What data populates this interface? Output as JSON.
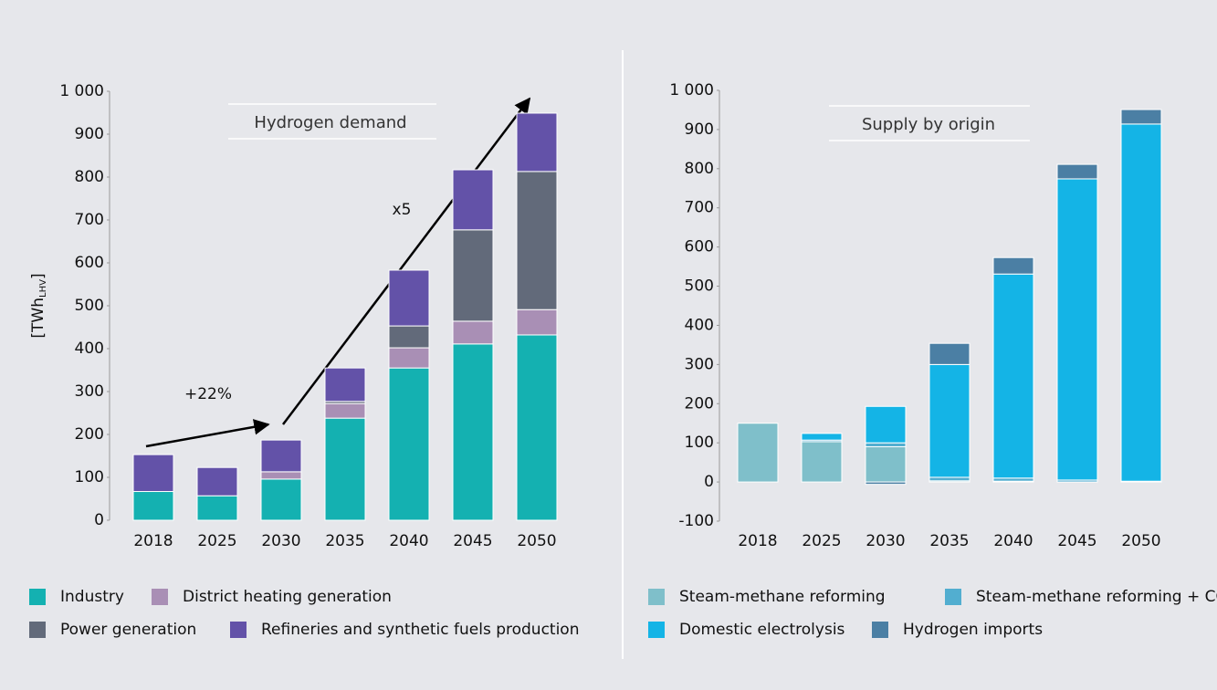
{
  "chart_data": [
    {
      "type": "bar",
      "stacked": true,
      "title": "Hydrogen demand",
      "ylabel": {
        "main": "[TWh",
        "sub": "LHV",
        "end": "]"
      },
      "categories": [
        "2018",
        "2025",
        "2030",
        "2035",
        "2040",
        "2045",
        "2050"
      ],
      "series": [
        {
          "name": "Industry",
          "color": "#14b1b1",
          "values": [
            67,
            57,
            96,
            238,
            355,
            411,
            432
          ]
        },
        {
          "name": "District heating generation",
          "color": "#a98fb5",
          "values": [
            0,
            0,
            17,
            34,
            47,
            53,
            59
          ]
        },
        {
          "name": "Power generation",
          "color": "#626a7a",
          "values": [
            0,
            0,
            0,
            5,
            51,
            213,
            322
          ]
        },
        {
          "name": "Refineries and synthetic fuels production",
          "color": "#6352a8",
          "values": [
            86,
            66,
            74,
            78,
            130,
            140,
            136
          ]
        }
      ],
      "ylim": [
        0,
        1000
      ],
      "yticks": [
        0,
        100,
        200,
        300,
        400,
        500,
        600,
        700,
        800,
        900,
        {
          "value": 1000,
          "label": "1 000"
        }
      ],
      "annotations": [
        "+22%",
        "x5"
      ]
    },
    {
      "type": "bar",
      "stacked": true,
      "title": "Supply by origin",
      "categories": [
        "2018",
        "2025",
        "2030",
        "2035",
        "2040",
        "2045",
        "2050"
      ],
      "series": [
        {
          "name": "Steam-methane reforming",
          "color": "#7fbfca",
          "values": [
            150,
            103,
            90,
            3,
            2,
            0,
            0
          ]
        },
        {
          "name": "Steam-methane reforming + CCS",
          "color": "#52aed0",
          "values": [
            0,
            4,
            10,
            9,
            8,
            5,
            2
          ]
        },
        {
          "name": "Domestic electrolysis",
          "color": "#14b4e6",
          "values": [
            0,
            17,
            93,
            288,
            521,
            769,
            912
          ]
        },
        {
          "name": "Hydrogen imports",
          "color": "#4b7fa4",
          "values": [
            0,
            0,
            -6,
            54,
            42,
            37,
            37
          ]
        }
      ],
      "ylim": [
        -100,
        1000
      ],
      "yticks": [
        -100,
        0,
        100,
        200,
        300,
        400,
        500,
        600,
        700,
        800,
        900,
        {
          "value": 1000,
          "label": "1 000"
        }
      ]
    }
  ]
}
